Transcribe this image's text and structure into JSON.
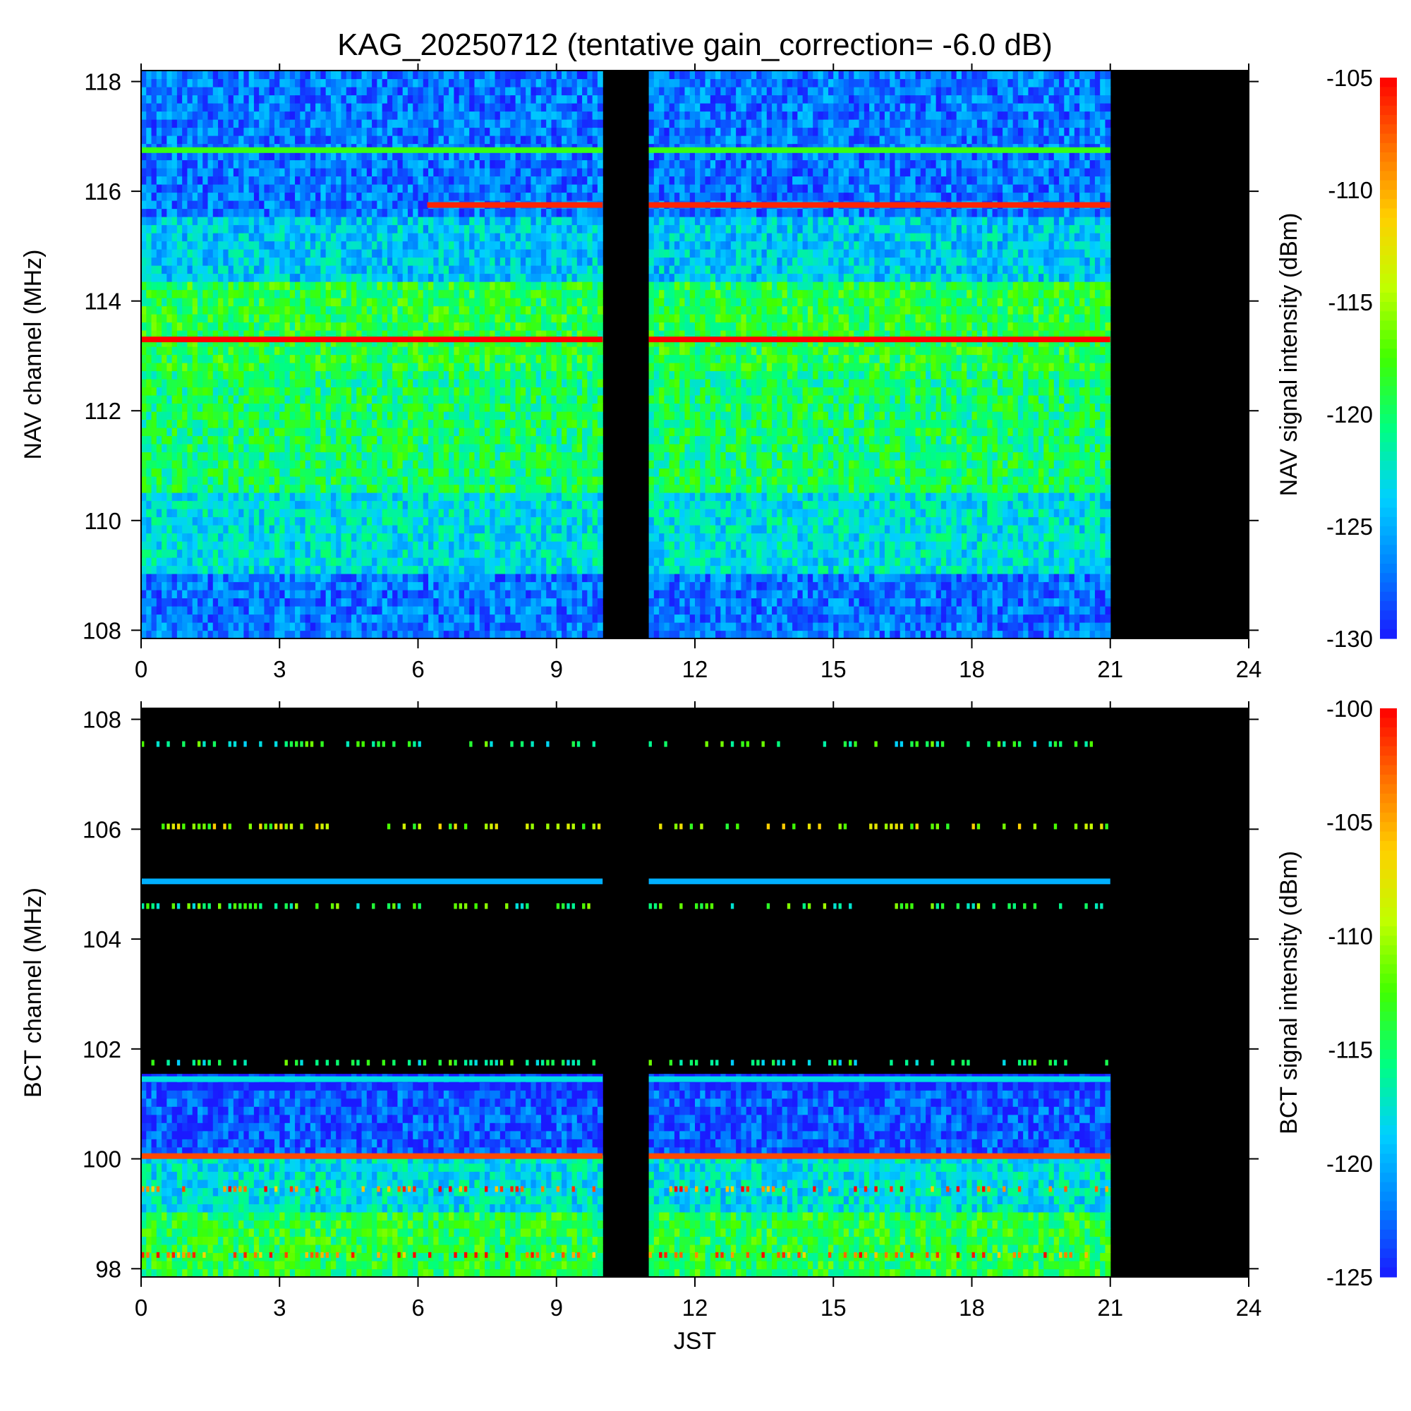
{
  "title": "KAG_20250712 (tentative gain_correction= -6.0 dB)",
  "colors": {
    "no_data": "#000000",
    "colormap": [
      "#1a1aff",
      "#0080ff",
      "#00d0ff",
      "#00ff80",
      "#40ff00",
      "#c0ff00",
      "#ffd000",
      "#ff7000",
      "#ff0000"
    ]
  },
  "chart_data": [
    {
      "type": "heatmap",
      "name": "nav",
      "xlabel": "",
      "ylabel": "NAV channel (MHz)",
      "colorbar_label": "NAV signal intensity (dBm)",
      "xlim": [
        0,
        24
      ],
      "ylim": [
        107.85,
        118.2
      ],
      "xticks": [
        "0",
        "3",
        "6",
        "9",
        "12",
        "15",
        "18",
        "21",
        "24"
      ],
      "yticks": [
        "108",
        "110",
        "112",
        "114",
        "116",
        "118"
      ],
      "clim": [
        -130,
        -105
      ],
      "cticks": [
        "-105",
        "-110",
        "-115",
        "-120",
        "-125",
        "-130"
      ],
      "data_segments": [
        [
          0,
          10
        ],
        [
          11,
          21
        ]
      ],
      "strong_lines": [
        {
          "freq": 113.3,
          "level_dbm": -105
        },
        {
          "freq": 116.75,
          "level_dbm": -118
        },
        {
          "freq": 115.75,
          "level_dbm": -106,
          "starts": 6.2
        }
      ],
      "band_levels": [
        {
          "from": 107.85,
          "to": 109.0,
          "level_dbm": -127
        },
        {
          "from": 109.0,
          "to": 110.5,
          "level_dbm": -123
        },
        {
          "from": 110.5,
          "to": 112.8,
          "level_dbm": -120
        },
        {
          "from": 112.8,
          "to": 114.3,
          "level_dbm": -119
        },
        {
          "from": 114.3,
          "to": 115.5,
          "level_dbm": -124
        },
        {
          "from": 115.5,
          "to": 118.2,
          "level_dbm": -127
        }
      ]
    },
    {
      "type": "heatmap",
      "name": "bct",
      "xlabel": "JST",
      "ylabel": "BCT channel (MHz)",
      "colorbar_label": "BCT signal intensity (dBm)",
      "xlim": [
        0,
        24
      ],
      "ylim": [
        97.85,
        108.2
      ],
      "xticks": [
        "0",
        "3",
        "6",
        "9",
        "12",
        "15",
        "18",
        "21",
        "24"
      ],
      "yticks": [
        "98",
        "100",
        "102",
        "104",
        "106",
        "108"
      ],
      "clim": [
        -125,
        -100
      ],
      "cticks": [
        "-100",
        "-105",
        "-110",
        "-115",
        "-120",
        "-125"
      ],
      "data_segments": [
        [
          0,
          10
        ],
        [
          11,
          21
        ]
      ],
      "strong_lines": [
        {
          "freq": 100.05,
          "level_dbm": -102
        },
        {
          "freq": 105.05,
          "level_dbm": -120
        },
        {
          "freq": 101.45,
          "level_dbm": -118
        }
      ],
      "sporadic_lines": [
        {
          "freq": 107.55,
          "level_dbm": -115
        },
        {
          "freq": 106.05,
          "level_dbm": -110
        },
        {
          "freq": 104.6,
          "level_dbm": -114
        },
        {
          "freq": 101.75,
          "level_dbm": -115
        },
        {
          "freq": 99.45,
          "level_dbm": -103
        },
        {
          "freq": 98.25,
          "level_dbm": -103
        }
      ],
      "band_levels": [
        {
          "from": 97.85,
          "to": 99.0,
          "level_dbm": -114
        },
        {
          "from": 99.0,
          "to": 100.0,
          "level_dbm": -118
        },
        {
          "from": 100.0,
          "to": 101.3,
          "level_dbm": -123
        },
        {
          "from": 101.3,
          "to": 101.6,
          "level_dbm": -125
        }
      ]
    }
  ]
}
